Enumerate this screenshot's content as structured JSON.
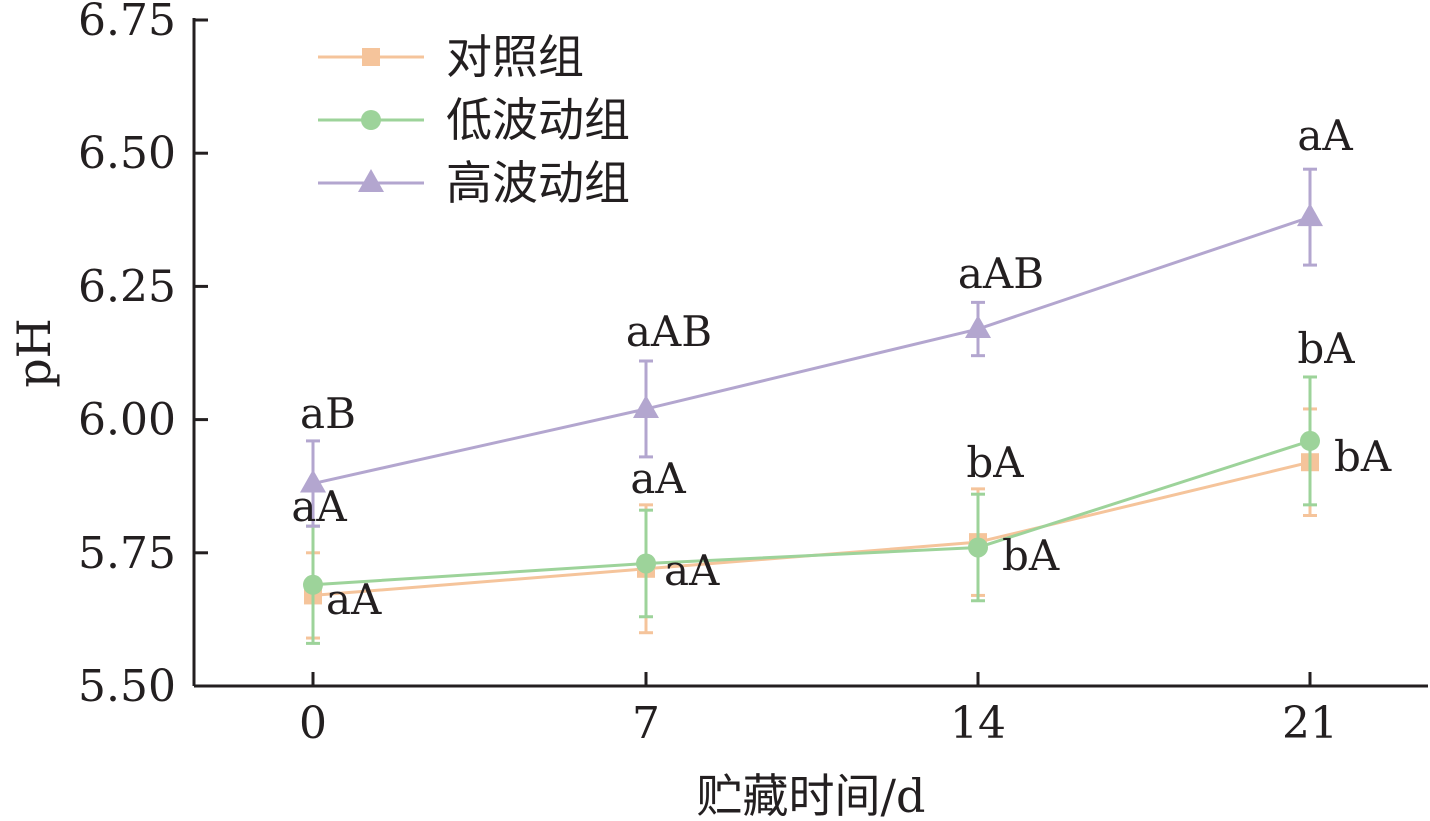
{
  "chart_data": {
    "type": "line",
    "title": "",
    "xlabel": "贮藏时间/d",
    "ylabel": "pH",
    "x": [
      0,
      7,
      14,
      21
    ],
    "x_tick_labels": [
      "0",
      "7",
      "14",
      "21"
    ],
    "y_ticks": [
      5.5,
      5.75,
      6.0,
      6.25,
      6.5,
      6.75
    ],
    "y_tick_labels": [
      "5.50",
      "5.75",
      "6.00",
      "6.25",
      "6.50",
      "6.75"
    ],
    "ylim": [
      5.5,
      6.75
    ],
    "grid": false,
    "legend_position": "top-left",
    "series": [
      {
        "name": "对照组",
        "color": "#f5c49b",
        "marker": "square",
        "values": [
          5.67,
          5.72,
          5.77,
          5.92
        ],
        "errors": [
          0.08,
          0.12,
          0.1,
          0.1
        ],
        "annotations": [
          "aA",
          "aA",
          "bA",
          "bA"
        ]
      },
      {
        "name": "低波动组",
        "color": "#9dd39a",
        "marker": "circle",
        "values": [
          5.69,
          5.73,
          5.76,
          5.96
        ],
        "errors": [
          0.11,
          0.1,
          0.1,
          0.12
        ],
        "annotations": [
          "aA",
          "aA",
          "bA",
          "bA"
        ]
      },
      {
        "name": "高波动组",
        "color": "#b3a6cf",
        "marker": "triangle",
        "values": [
          5.88,
          6.02,
          6.17,
          6.38
        ],
        "errors": [
          0.08,
          0.09,
          0.05,
          0.09
        ],
        "annotations": [
          "aB",
          "aAB",
          "aAB",
          "aA"
        ]
      }
    ]
  }
}
